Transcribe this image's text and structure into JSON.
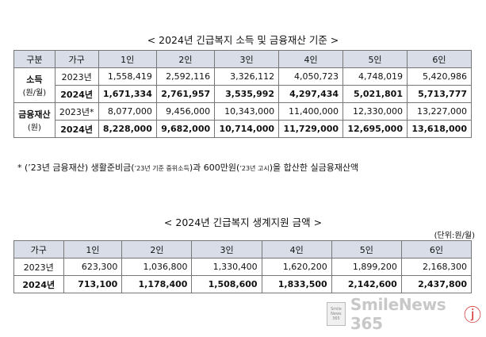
{
  "title1": "< 2024년 긴급복지 소득 및 금융재산 기준 >",
  "table1": {
    "headers": [
      "구분",
      "가구",
      "1인",
      "2인",
      "3인",
      "4인",
      "5인",
      "6인"
    ],
    "income_label": "소득",
    "income_unit": "(원/월)",
    "assets_label": "금융재산",
    "assets_unit": "(원)",
    "rows": {
      "income_2023": {
        "year": "2023년",
        "values": [
          "1,558,419",
          "2,592,116",
          "3,326,112",
          "4,050,723",
          "4,748,019",
          "5,420,986"
        ]
      },
      "income_2024": {
        "year": "2024년",
        "values": [
          "1,671,334",
          "2,761,957",
          "3,535,992",
          "4,297,434",
          "5,021,801",
          "5,713,777"
        ]
      },
      "assets_2023": {
        "year": "2023년*",
        "values": [
          "8,077,000",
          "9,456,000",
          "10,343,000",
          "11,400,000",
          "12,330,000",
          "13,227,000"
        ]
      },
      "assets_2024": {
        "year": "2024년",
        "values": [
          "8,228,000",
          "9,682,000",
          "10,714,000",
          "11,729,000",
          "12,695,000",
          "13,618,000"
        ]
      }
    }
  },
  "footnote": {
    "part1": "* (’23년 금융재산) 생활준비금(",
    "small1": "’23년 기준 중위소득",
    "part2": ")과 600만원(",
    "small2": "’23년 고시",
    "part3": ")을 합산한 실금융재산액"
  },
  "title2": "< 2024년 긴급복지 생계지원 금액 >",
  "unit_note": "(단위:원/월)",
  "table2": {
    "headers": [
      "가구",
      "1인",
      "2인",
      "3인",
      "4인",
      "5인",
      "6인"
    ],
    "rows": {
      "r2023": {
        "year": "2023년",
        "values": [
          "623,300",
          "1,036,800",
          "1,330,400",
          "1,620,200",
          "1,899,200",
          "2,168,300"
        ]
      },
      "r2024": {
        "year": "2024년",
        "values": [
          "713,100",
          "1,178,400",
          "1,508,600",
          "1,833,500",
          "2,142,600",
          "2,437,800"
        ]
      }
    }
  },
  "watermark": {
    "logo_text": "Smile News 365",
    "text": "SmileNews 365",
    "smile_glyph": "ⓙ"
  }
}
